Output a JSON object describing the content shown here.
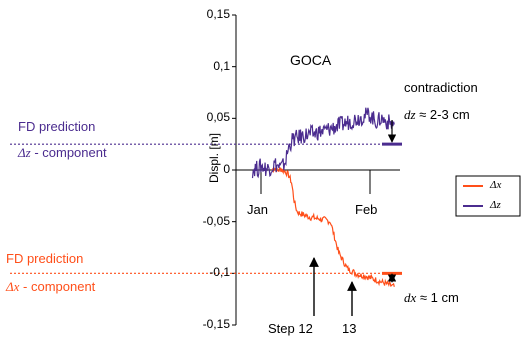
{
  "chart_data": {
    "type": "line",
    "title": "GOCA",
    "ylabel": "Displ.  [m]",
    "xlabel": "",
    "ylim": [
      -0.15,
      0.15
    ],
    "y_ticks": [
      "0,15",
      "0,1",
      "0,05",
      "0",
      "-0,05",
      "-0,1",
      "-0,15"
    ],
    "y_tick_values": [
      0.15,
      0.1,
      0.05,
      0,
      -0.05,
      -0.1,
      -0.15
    ],
    "x_ticks": [
      "Jan",
      "Feb"
    ],
    "grid": false,
    "legend_position": "right",
    "series": [
      {
        "name": "Δx",
        "color": "#ff4f1a",
        "x": [
          0,
          1,
          2,
          3,
          4,
          5,
          6,
          7,
          8,
          9,
          10,
          11,
          12,
          13,
          14,
          15,
          16,
          17,
          18,
          19,
          20,
          21,
          22,
          23,
          24,
          25,
          26,
          27,
          28,
          29,
          30,
          31,
          32,
          33,
          34,
          35,
          36,
          37,
          38,
          39,
          40,
          41,
          42,
          43,
          44
        ],
        "values": [
          0,
          0.002,
          -0.001,
          0.001,
          0,
          -0.002,
          -0.005,
          -0.012,
          -0.03,
          -0.04,
          -0.042,
          -0.043,
          -0.044,
          -0.045,
          -0.046,
          -0.046,
          -0.047,
          -0.047,
          -0.048,
          -0.048,
          -0.049,
          -0.05,
          -0.06,
          -0.07,
          -0.08,
          -0.085,
          -0.09,
          -0.095,
          -0.097,
          -0.098,
          -0.1,
          -0.101,
          -0.102,
          -0.102,
          -0.103,
          -0.104,
          -0.105,
          -0.106,
          -0.107,
          -0.108,
          -0.109,
          -0.11,
          -0.111,
          -0.112,
          -0.113
        ]
      },
      {
        "name": "Δz",
        "color": "#4b2c8f",
        "x": [
          -7,
          -6,
          -5,
          -4,
          -3,
          -2,
          -1,
          0,
          1,
          2,
          3,
          4,
          5,
          6,
          7,
          8,
          9,
          10,
          11,
          12,
          13,
          14,
          15,
          16,
          17,
          18,
          19,
          20,
          21,
          22,
          23,
          24,
          25,
          26,
          27,
          28,
          29,
          30,
          31,
          32,
          33,
          34,
          35,
          36,
          37,
          38,
          39,
          40,
          41,
          42,
          43,
          44
        ],
        "values": [
          0,
          0.002,
          0.001,
          0.004,
          0.003,
          0.001,
          0.002,
          0.003,
          0.006,
          0.004,
          0.002,
          0.004,
          0.01,
          0.022,
          0.028,
          0.03,
          0.031,
          0.032,
          0.033,
          0.034,
          0.034,
          0.035,
          0.035,
          0.036,
          0.037,
          0.037,
          0.038,
          0.039,
          0.04,
          0.041,
          0.042,
          0.043,
          0.044,
          0.045,
          0.046,
          0.047,
          0.048,
          0.049,
          0.05,
          0.051,
          0.052,
          0.053,
          0.054,
          0.051,
          0.048,
          0.046,
          0.05,
          0.049,
          0.047,
          0.046,
          0.045,
          0.044
        ]
      }
    ],
    "reference_lines": [
      {
        "label": "FD prediction",
        "component_symbol": "Δz",
        "component_suffix": " - component",
        "y": 0.025,
        "color": "#4b2c8f"
      },
      {
        "label": "FD prediction",
        "component_symbol": "Δx",
        "component_suffix": " - component",
        "y": -0.1,
        "color": "#ff4f1a"
      }
    ],
    "annotations": [
      {
        "text": "contradiction"
      },
      {
        "symbol": "dz",
        "text": " ≈ 2-3 cm"
      },
      {
        "symbol": "dx",
        "text": " ≈ 1 cm"
      },
      {
        "text": "Step 12"
      },
      {
        "text": "13"
      }
    ]
  }
}
